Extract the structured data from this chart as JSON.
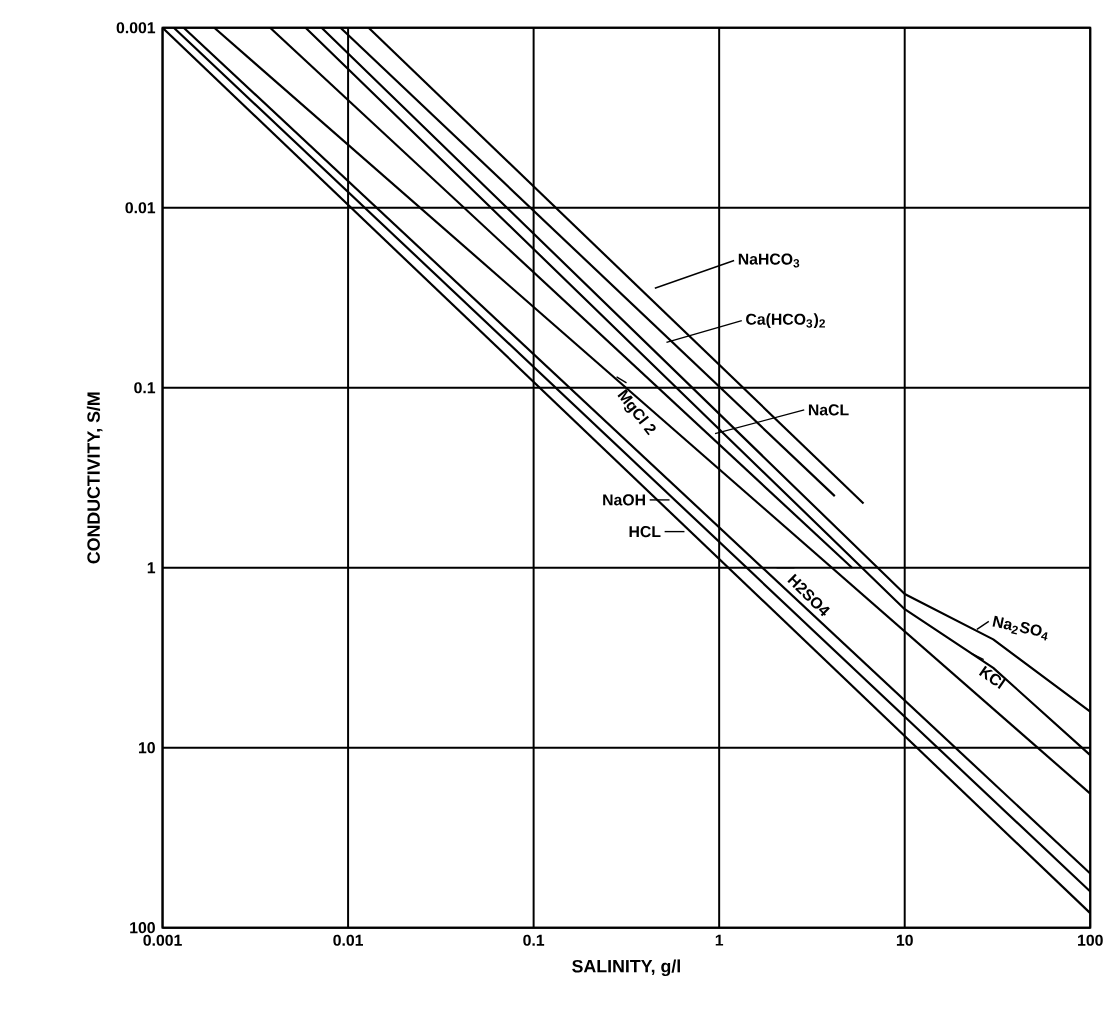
{
  "chart_data": {
    "type": "line",
    "xlabel": "SALINITY, g/l",
    "ylabel": "CONDUCTIVITY, S/M",
    "log": "xy",
    "grid": true,
    "marker": "none",
    "line_style": "solid",
    "xlim": [
      0.001,
      100
    ],
    "ylim": [
      100,
      0.001
    ],
    "xticks": [
      0.001,
      0.01,
      0.1,
      1,
      10,
      100
    ],
    "yticks": [
      0.001,
      0.01,
      0.1,
      1,
      10,
      100
    ],
    "series": [
      {
        "color": "#000000",
        "x": [
          0.001,
          100
        ],
        "values": [
          0.001,
          83
        ]
      },
      {
        "color": "#000000",
        "x": [
          0.00115,
          100
        ],
        "values": [
          0.001,
          63
        ]
      },
      {
        "color": "#000000",
        "x": [
          0.0013,
          100
        ],
        "values": [
          0.001,
          50
        ]
      },
      {
        "color": "#000000",
        "x": [
          0.0019,
          100
        ],
        "values": [
          0.001,
          18
        ]
      },
      {
        "color": "#000000",
        "x": [
          0.0038,
          5.2
        ],
        "values": [
          0.001,
          1.0
        ]
      },
      {
        "color": "#000000",
        "x": [
          0.0059,
          10,
          30,
          100
        ],
        "values": [
          0.001,
          1.7,
          3.6,
          11
        ]
      },
      {
        "color": "#000000",
        "x": [
          0.0072,
          10,
          30,
          100
        ],
        "values": [
          0.001,
          1.4,
          2.5,
          6.3
        ]
      },
      {
        "color": "#000000",
        "x": [
          0.0091,
          4.2
        ],
        "values": [
          0.001,
          0.4
        ]
      },
      {
        "color": "#000000",
        "x": [
          0.0129,
          6.0
        ],
        "values": [
          0.001,
          0.44
        ]
      }
    ],
    "annotations": [
      {
        "text": "NaHCO$_{3}$",
        "x": 0.45,
        "y": 0.028
      },
      {
        "text": "Ca(HCO$_{3}$)$_{2}$",
        "x": 0.52,
        "y": 0.056
      },
      {
        "text": "NaCL",
        "x": 0.95,
        "y": 0.18
      },
      {
        "text": "MgCl 2",
        "x": 0.28,
        "y": 0.087
      },
      {
        "text": "NaOH",
        "x": 0.54,
        "y": 0.42
      },
      {
        "text": "HCL",
        "x": 0.65,
        "y": 0.63
      },
      {
        "text": "H2SO4",
        "x": 2.04,
        "y": 1.0
      },
      {
        "text": "Na$_{2}$SO$_{4}$",
        "x": 24.5,
        "y": 2.2
      },
      {
        "text": "KCl",
        "x": 23,
        "y": 3.0
      }
    ]
  }
}
